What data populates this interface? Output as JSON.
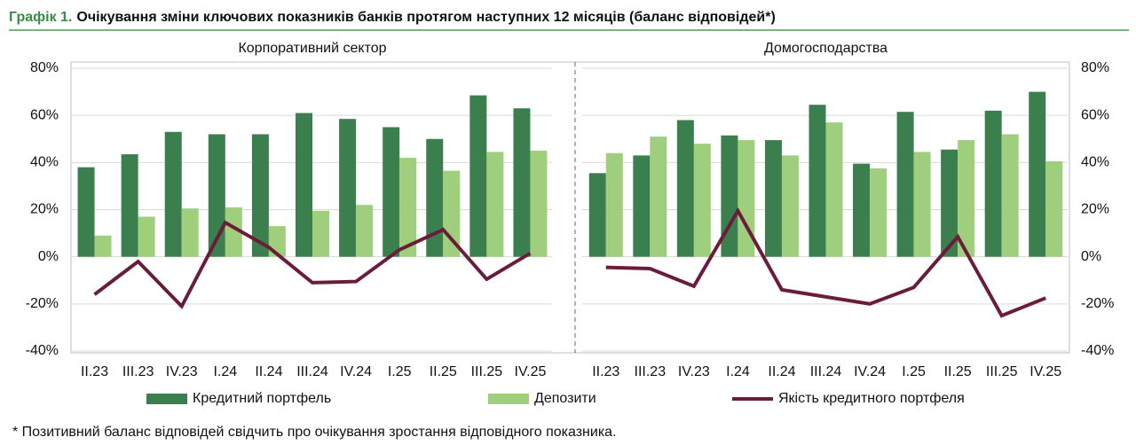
{
  "chart_data": {
    "type": "bar",
    "title_prefix": "Графік 1.",
    "title": "Очікування зміни ключових показників банків протягом наступних 12 місяців (баланс відповідей*)",
    "footnote": "* Позитивний баланс відповідей свідчить про очікування зростання відповідного показника.",
    "ylim": [
      -40,
      80
    ],
    "yticks": [
      {
        "value": -40,
        "label": "-40%"
      },
      {
        "value": -20,
        "label": "-20%"
      },
      {
        "value": 0,
        "label": "0%"
      },
      {
        "value": 20,
        "label": "20%"
      },
      {
        "value": 40,
        "label": "40%"
      },
      {
        "value": 60,
        "label": "60%"
      },
      {
        "value": 80,
        "label": "80%"
      }
    ],
    "grid": true,
    "panels": [
      {
        "title": "Корпоративний сектор",
        "categories": [
          "II.23",
          "III.23",
          "IV.23",
          "I.24",
          "II.24",
          "III.24",
          "IV.24",
          "I.25",
          "II.25",
          "III.25",
          "IV.25"
        ]
      },
      {
        "title": "Домогосподарства",
        "categories": [
          "II.23",
          "III.23",
          "IV.23",
          "I.24",
          "II.24",
          "III.24",
          "IV.24",
          "I.25",
          "II.25",
          "III.25",
          "IV.25"
        ]
      }
    ],
    "series": [
      {
        "name": "Кредитний портфель",
        "type": "bar",
        "color": "#3c7f4f",
        "values": [
          [
            38,
            43.5,
            53,
            52,
            52,
            61,
            58.5,
            55,
            50,
            68.5,
            63
          ],
          [
            35.5,
            43,
            58,
            51.5,
            49.5,
            64.5,
            39.5,
            61.5,
            45.5,
            62,
            70
          ]
        ]
      },
      {
        "name": "Депозити",
        "type": "bar",
        "color": "#9fcf7c",
        "values": [
          [
            9,
            17,
            20.5,
            21,
            13,
            19.5,
            22,
            42,
            36.5,
            44.5,
            45
          ],
          [
            44,
            51,
            48,
            49.5,
            43,
            57,
            37.5,
            44.5,
            49.5,
            52,
            40.5
          ]
        ]
      },
      {
        "name": "Якість кредитного портфеля",
        "type": "line",
        "color": "#6a1d3a",
        "values": [
          [
            -16,
            -2,
            -21,
            14.5,
            4,
            -11,
            -10.5,
            3,
            11.5,
            -9.5,
            1.5
          ],
          [
            -4.5,
            -5,
            -12.5,
            19.5,
            -14,
            -17,
            -20,
            -13,
            8.5,
            -25,
            -17.5
          ]
        ]
      }
    ]
  }
}
